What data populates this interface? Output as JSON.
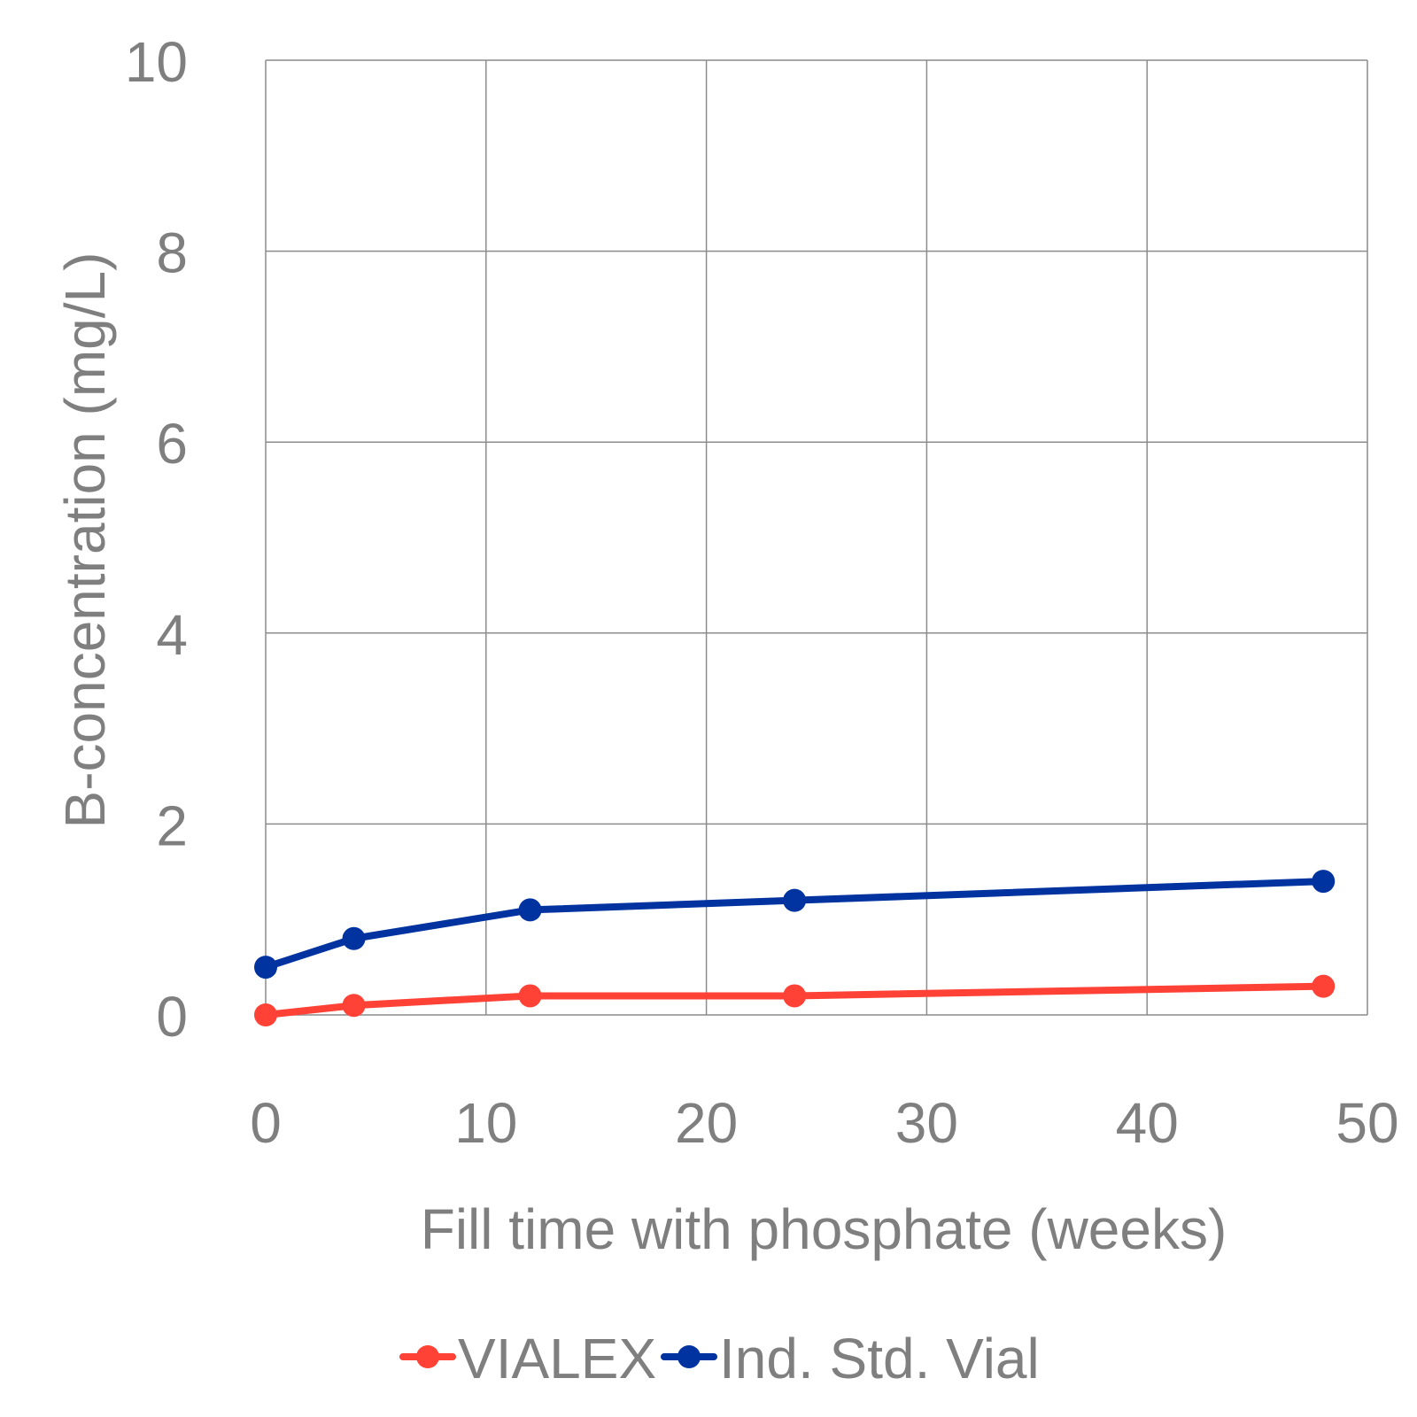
{
  "chart_data": {
    "type": "line",
    "xlabel": "Fill time with phosphate (weeks)",
    "ylabel": "B-concentration (mg/L)",
    "xlim": [
      0,
      50
    ],
    "ylim": [
      0,
      10
    ],
    "xticks": [
      "0",
      "10",
      "20",
      "30",
      "40",
      "50"
    ],
    "yticks": [
      "0",
      "2",
      "4",
      "6",
      "8",
      "10"
    ],
    "grid": true,
    "legend_position": "bottom",
    "series": [
      {
        "name": "VIALEX",
        "color": "#ff4136",
        "x": [
          0,
          4,
          12,
          24,
          48
        ],
        "y": [
          0.0,
          0.1,
          0.2,
          0.2,
          0.3
        ]
      },
      {
        "name": "Ind. Std. Vial",
        "color": "#0033a0",
        "x": [
          0,
          4,
          12,
          24,
          48
        ],
        "y": [
          0.5,
          0.8,
          1.1,
          1.2,
          1.4
        ]
      }
    ]
  }
}
